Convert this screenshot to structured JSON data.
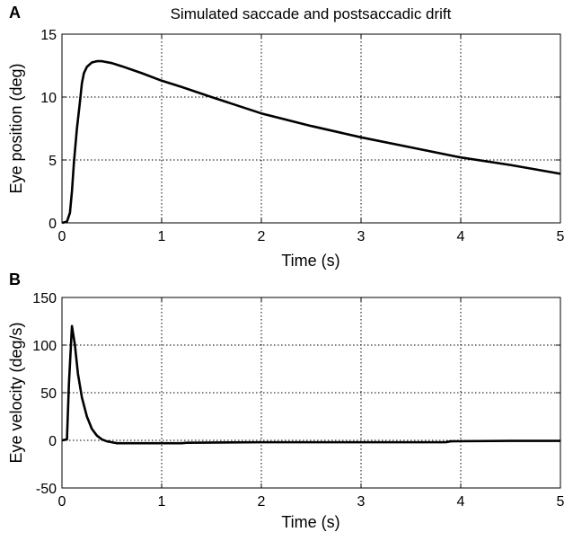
{
  "chart_data": [
    {
      "type": "line",
      "panel_label": "A",
      "title": "Simulated saccade and postsaccadic drift",
      "xlabel": "Time (s)",
      "ylabel": "Eye position (deg)",
      "xlim": [
        0,
        5
      ],
      "ylim": [
        0,
        15
      ],
      "xticks": [
        "0",
        "1",
        "2",
        "3",
        "4",
        "5"
      ],
      "yticks": [
        "0",
        "5",
        "10",
        "15"
      ],
      "grid": true,
      "series": [
        {
          "color": "#000000",
          "x": [
            0,
            0.05,
            0.08,
            0.1,
            0.12,
            0.15,
            0.18,
            0.2,
            0.22,
            0.25,
            0.3,
            0.35,
            0.4,
            0.5,
            0.6,
            0.8,
            1.0,
            1.2,
            1.5,
            2.0,
            2.5,
            3.0,
            3.5,
            4.0,
            4.5,
            5.0
          ],
          "y": [
            0,
            0.1,
            0.8,
            2.5,
            4.8,
            7.5,
            9.6,
            11.1,
            11.9,
            12.4,
            12.75,
            12.85,
            12.85,
            12.7,
            12.45,
            11.9,
            11.3,
            10.8,
            10.0,
            8.7,
            7.7,
            6.8,
            6.0,
            5.2,
            4.6,
            3.9
          ]
        }
      ]
    },
    {
      "type": "line",
      "panel_label": "B",
      "title": "",
      "xlabel": "Time (s)",
      "ylabel": "Eye velocity (deg/s)",
      "xlim": [
        0,
        5
      ],
      "ylim": [
        -50,
        150
      ],
      "xticks": [
        "0",
        "1",
        "2",
        "3",
        "4",
        "5"
      ],
      "yticks": [
        "-50",
        "0",
        "50",
        "100",
        "150"
      ],
      "grid": true,
      "series": [
        {
          "color": "#000000",
          "x": [
            0,
            0.05,
            0.07,
            0.1,
            0.13,
            0.16,
            0.2,
            0.25,
            0.3,
            0.35,
            0.4,
            0.45,
            0.5,
            0.55,
            1.2,
            1.25,
            2.0,
            3.0,
            3.85,
            3.9,
            4.5,
            5.0
          ],
          "y": [
            0,
            1,
            60,
            120,
            100,
            70,
            45,
            25,
            12,
            5,
            1,
            -1,
            -2,
            -3,
            -3,
            -2.5,
            -2,
            -2,
            -2,
            -1,
            -0.5,
            -0.5
          ]
        }
      ]
    }
  ]
}
